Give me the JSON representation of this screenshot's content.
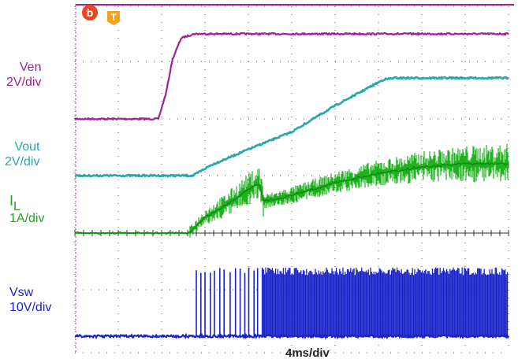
{
  "colors": {
    "ven": "#a0209a",
    "vout": "#2aa6ac",
    "il": "#1fb21f",
    "vsw": "#1a22c8",
    "grid": "#555555"
  },
  "labels": {
    "ven": [
      "Ven",
      "2V/div"
    ],
    "vout": [
      "Vout",
      "2V/div"
    ],
    "il_main": "I",
    "il_sub": "L",
    "il_scale": "1A/div",
    "vsw": [
      "Vsw",
      "10V/div"
    ],
    "timebase": "4ms/div",
    "marker_b": "b",
    "marker_t": "T"
  },
  "chart_data": {
    "type": "line",
    "xlabel": "4ms/div",
    "xlim": [
      0,
      40
    ],
    "x_unit": "ms",
    "series": [
      {
        "name": "Ven",
        "scale": "2V/div",
        "x": [
          0,
          7.7,
          8.4,
          9.0,
          9.8,
          11,
          40
        ],
        "values": [
          0,
          0,
          1.2,
          2.8,
          3.8,
          4.0,
          4.0
        ]
      },
      {
        "name": "Vout",
        "scale": "2V/div",
        "x": [
          0,
          10.9,
          12.5,
          16,
          20,
          24,
          28.5,
          29.5,
          40
        ],
        "values": [
          0,
          0,
          0.35,
          0.9,
          1.5,
          2.4,
          3.3,
          3.35,
          3.35
        ]
      },
      {
        "name": "IL",
        "scale": "1A/div",
        "x": [
          0,
          10.5,
          12,
          14,
          16,
          17,
          17.4,
          20,
          24,
          28,
          32,
          36,
          40
        ],
        "values": [
          0,
          0,
          0.5,
          0.9,
          1.4,
          1.6,
          1.0,
          1.2,
          1.6,
          1.9,
          2.1,
          2.2,
          2.2
        ]
      },
      {
        "name": "Vsw",
        "scale": "10V/div",
        "x": [
          0,
          11.2,
          17.4,
          40
        ],
        "values": [
          0,
          0,
          0,
          0
        ],
        "pulse_start_ms": 11.2,
        "burst_mode_end_ms": 17.4,
        "pulse_high_div": 1.9
      }
    ],
    "grid": true
  }
}
